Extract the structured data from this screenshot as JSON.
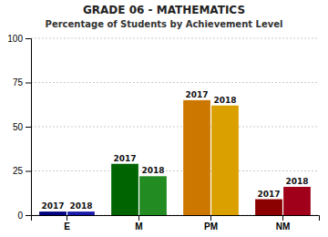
{
  "chart_data": {
    "type": "bar",
    "title": "GRADE 06 - MATHEMATICS",
    "subtitle": "Percentage of Students by Achievement Level",
    "categories": [
      "E",
      "M",
      "PM",
      "NM"
    ],
    "series": [
      {
        "name": "2017",
        "colors": [
          "#000080",
          "#006400",
          "#CC7700",
          "#8B0000"
        ],
        "values": [
          2,
          29,
          65,
          9
        ]
      },
      {
        "name": "2018",
        "colors": [
          "#1a1aaa",
          "#228B22",
          "#DAA000",
          "#A0001a"
        ],
        "values": [
          2,
          22,
          62,
          16
        ]
      }
    ],
    "ylim": [
      0,
      100
    ],
    "yticks": [
      0,
      25,
      50,
      75,
      100
    ],
    "grid": true
  }
}
